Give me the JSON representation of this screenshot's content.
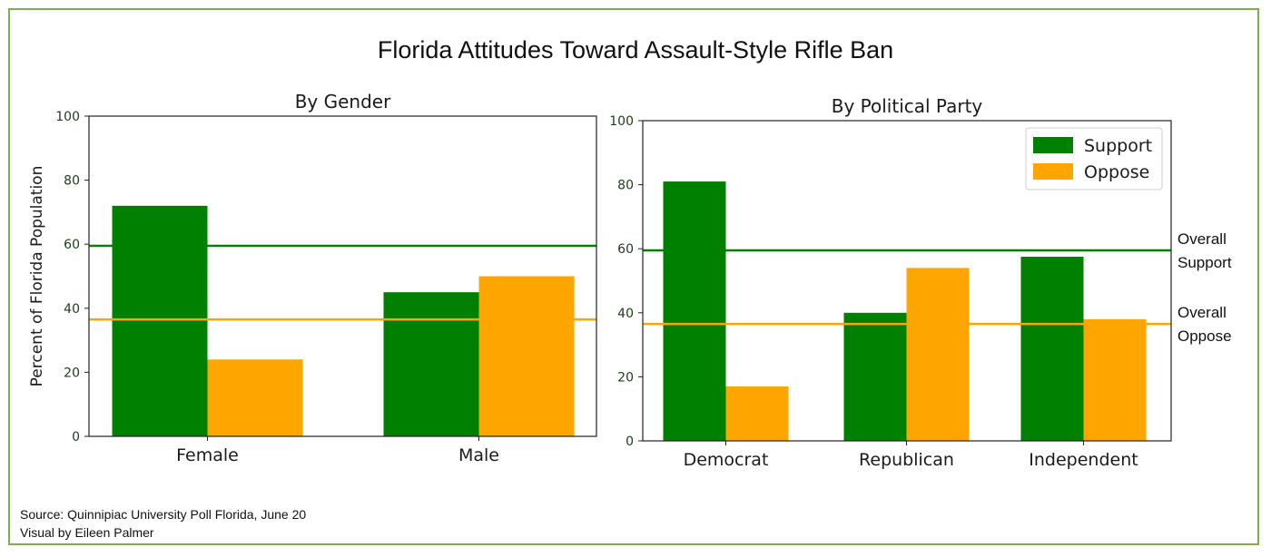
{
  "title": "Florida Attitudes Toward Assault-Style Rifle Ban",
  "source_line": "Source: Quinnipiac University Poll Florida, June 20",
  "credit_line": "Visual by Eileen Palmer",
  "colors": {
    "support": "#008000",
    "oppose": "#ffa500",
    "frame": "#7fae4f"
  },
  "reference_labels": {
    "support": [
      "Overall",
      "Support"
    ],
    "oppose": [
      "Overall",
      "Oppose"
    ]
  },
  "chart_data": [
    {
      "type": "bar",
      "title": "By Gender",
      "ylabel": "Percent of Florida Population",
      "ylim": [
        0,
        100
      ],
      "yticks": [
        0,
        20,
        40,
        60,
        80,
        100
      ],
      "categories": [
        "Female",
        "Male"
      ],
      "series": [
        {
          "name": "Support",
          "color": "#008000",
          "values": [
            72,
            45
          ]
        },
        {
          "name": "Oppose",
          "color": "#ffa500",
          "values": [
            24,
            50
          ]
        }
      ],
      "reference_lines": [
        {
          "series": "Support",
          "value": 59.5
        },
        {
          "series": "Oppose",
          "value": 36.5
        }
      ],
      "legend": null
    },
    {
      "type": "bar",
      "title": "By Political Party",
      "ylabel": "",
      "ylim": [
        0,
        100
      ],
      "yticks": [
        0,
        20,
        40,
        60,
        80,
        100
      ],
      "categories": [
        "Democrat",
        "Republican",
        "Independent"
      ],
      "series": [
        {
          "name": "Support",
          "color": "#008000",
          "values": [
            81,
            40,
            57.5
          ]
        },
        {
          "name": "Oppose",
          "color": "#ffa500",
          "values": [
            17,
            54,
            38
          ]
        }
      ],
      "reference_lines": [
        {
          "series": "Support",
          "value": 59.5
        },
        {
          "series": "Oppose",
          "value": 36.5
        }
      ],
      "legend": "top-right"
    }
  ]
}
